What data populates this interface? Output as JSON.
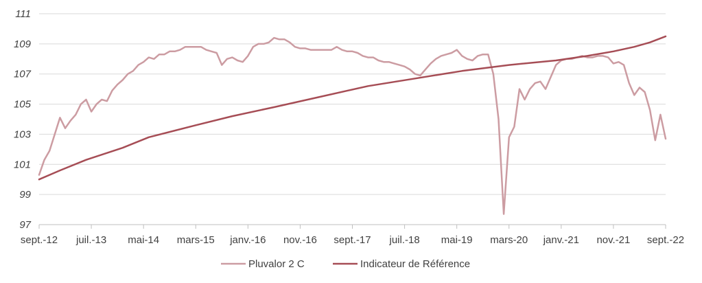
{
  "chart_data": {
    "type": "line",
    "title": "",
    "xlabel": "",
    "ylabel": "",
    "ylim": [
      97,
      111
    ],
    "y_ticks": [
      97,
      99,
      101,
      103,
      105,
      107,
      109,
      111
    ],
    "x_ticks": [
      {
        "x": "2012-09",
        "label": "sept.-12"
      },
      {
        "x": "2013-07",
        "label": "juil.-13"
      },
      {
        "x": "2014-05",
        "label": "mai-14"
      },
      {
        "x": "2015-03",
        "label": "mars-15"
      },
      {
        "x": "2016-01",
        "label": "janv.-16"
      },
      {
        "x": "2016-11",
        "label": "nov.-16"
      },
      {
        "x": "2017-09",
        "label": "sept.-17"
      },
      {
        "x": "2018-07",
        "label": "juil.-18"
      },
      {
        "x": "2019-05",
        "label": "mai-19"
      },
      {
        "x": "2020-03",
        "label": "mars-20"
      },
      {
        "x": "2021-01",
        "label": "janv.-21"
      },
      {
        "x": "2021-11",
        "label": "nov.-21"
      },
      {
        "x": "2022-09",
        "label": "sept.-22"
      }
    ],
    "xlim": [
      "2012-09",
      "2022-09"
    ],
    "grid": "horizontal",
    "legend_position": "bottom",
    "series": [
      {
        "name": "Pluvalor 2 C",
        "color": "#cc9ca2",
        "points": [
          [
            "2012-09",
            100.3
          ],
          [
            "2012-10",
            101.3
          ],
          [
            "2012-11",
            101.9
          ],
          [
            "2012-12",
            103.0
          ],
          [
            "2013-01",
            104.1
          ],
          [
            "2013-02",
            103.4
          ],
          [
            "2013-03",
            103.9
          ],
          [
            "2013-04",
            104.3
          ],
          [
            "2013-05",
            105.0
          ],
          [
            "2013-06",
            105.3
          ],
          [
            "2013-07",
            104.5
          ],
          [
            "2013-08",
            105.0
          ],
          [
            "2013-09",
            105.3
          ],
          [
            "2013-10",
            105.2
          ],
          [
            "2013-11",
            105.9
          ],
          [
            "2013-12",
            106.3
          ],
          [
            "2014-01",
            106.6
          ],
          [
            "2014-02",
            107.0
          ],
          [
            "2014-03",
            107.2
          ],
          [
            "2014-04",
            107.6
          ],
          [
            "2014-05",
            107.8
          ],
          [
            "2014-06",
            108.1
          ],
          [
            "2014-07",
            108.0
          ],
          [
            "2014-08",
            108.3
          ],
          [
            "2014-09",
            108.3
          ],
          [
            "2014-10",
            108.5
          ],
          [
            "2014-11",
            108.5
          ],
          [
            "2014-12",
            108.6
          ],
          [
            "2015-01",
            108.8
          ],
          [
            "2015-02",
            108.8
          ],
          [
            "2015-03",
            108.8
          ],
          [
            "2015-04",
            108.8
          ],
          [
            "2015-05",
            108.6
          ],
          [
            "2015-06",
            108.5
          ],
          [
            "2015-07",
            108.4
          ],
          [
            "2015-08",
            107.6
          ],
          [
            "2015-09",
            108.0
          ],
          [
            "2015-10",
            108.1
          ],
          [
            "2015-11",
            107.9
          ],
          [
            "2015-12",
            107.8
          ],
          [
            "2016-01",
            108.2
          ],
          [
            "2016-02",
            108.8
          ],
          [
            "2016-03",
            109.0
          ],
          [
            "2016-04",
            109.0
          ],
          [
            "2016-05",
            109.1
          ],
          [
            "2016-06",
            109.4
          ],
          [
            "2016-07",
            109.3
          ],
          [
            "2016-08",
            109.3
          ],
          [
            "2016-09",
            109.1
          ],
          [
            "2016-10",
            108.8
          ],
          [
            "2016-11",
            108.7
          ],
          [
            "2016-12",
            108.7
          ],
          [
            "2017-01",
            108.6
          ],
          [
            "2017-02",
            108.6
          ],
          [
            "2017-03",
            108.6
          ],
          [
            "2017-04",
            108.6
          ],
          [
            "2017-05",
            108.6
          ],
          [
            "2017-06",
            108.8
          ],
          [
            "2017-07",
            108.6
          ],
          [
            "2017-08",
            108.5
          ],
          [
            "2017-09",
            108.5
          ],
          [
            "2017-10",
            108.4
          ],
          [
            "2017-11",
            108.2
          ],
          [
            "2017-12",
            108.1
          ],
          [
            "2018-01",
            108.1
          ],
          [
            "2018-02",
            107.9
          ],
          [
            "2018-03",
            107.8
          ],
          [
            "2018-04",
            107.8
          ],
          [
            "2018-05",
            107.7
          ],
          [
            "2018-06",
            107.6
          ],
          [
            "2018-07",
            107.5
          ],
          [
            "2018-08",
            107.3
          ],
          [
            "2018-09",
            107.0
          ],
          [
            "2018-10",
            106.9
          ],
          [
            "2018-11",
            107.3
          ],
          [
            "2018-12",
            107.7
          ],
          [
            "2019-01",
            108.0
          ],
          [
            "2019-02",
            108.2
          ],
          [
            "2019-03",
            108.3
          ],
          [
            "2019-04",
            108.4
          ],
          [
            "2019-05",
            108.6
          ],
          [
            "2019-06",
            108.2
          ],
          [
            "2019-07",
            108.0
          ],
          [
            "2019-08",
            107.9
          ],
          [
            "2019-09",
            108.2
          ],
          [
            "2019-10",
            108.3
          ],
          [
            "2019-11",
            108.3
          ],
          [
            "2019-12",
            107.0
          ],
          [
            "2020-01",
            104.0
          ],
          [
            "2020-02",
            97.7
          ],
          [
            "2020-03",
            102.8
          ],
          [
            "2020-04",
            103.5
          ],
          [
            "2020-05",
            106.0
          ],
          [
            "2020-06",
            105.3
          ],
          [
            "2020-07",
            106.0
          ],
          [
            "2020-08",
            106.4
          ],
          [
            "2020-09",
            106.5
          ],
          [
            "2020-10",
            106.0
          ],
          [
            "2020-11",
            106.8
          ],
          [
            "2020-12",
            107.6
          ],
          [
            "2021-01",
            107.9
          ],
          [
            "2021-02",
            108.0
          ],
          [
            "2021-03",
            108.0
          ],
          [
            "2021-04",
            108.1
          ],
          [
            "2021-05",
            108.2
          ],
          [
            "2021-06",
            108.1
          ],
          [
            "2021-07",
            108.1
          ],
          [
            "2021-08",
            108.2
          ],
          [
            "2021-09",
            108.2
          ],
          [
            "2021-10",
            108.1
          ],
          [
            "2021-11",
            107.7
          ],
          [
            "2021-12",
            107.8
          ],
          [
            "2022-01",
            107.6
          ],
          [
            "2022-02",
            106.4
          ],
          [
            "2022-03",
            105.6
          ],
          [
            "2022-04",
            106.1
          ],
          [
            "2022-05",
            105.8
          ],
          [
            "2022-06",
            104.6
          ],
          [
            "2022-07",
            102.6
          ],
          [
            "2022-08",
            104.3
          ],
          [
            "2022-09",
            102.7
          ]
        ]
      },
      {
        "name": "Indicateur de Référence",
        "color": "#a64d55",
        "points": [
          [
            "2012-09",
            100.0
          ],
          [
            "2013-01",
            100.6
          ],
          [
            "2013-06",
            101.3
          ],
          [
            "2014-01",
            102.1
          ],
          [
            "2014-06",
            102.8
          ],
          [
            "2015-03",
            103.6
          ],
          [
            "2015-10",
            104.2
          ],
          [
            "2016-06",
            104.8
          ],
          [
            "2017-03",
            105.5
          ],
          [
            "2017-12",
            106.2
          ],
          [
            "2018-09",
            106.7
          ],
          [
            "2019-06",
            107.2
          ],
          [
            "2020-03",
            107.6
          ],
          [
            "2020-12",
            107.9
          ],
          [
            "2021-06",
            108.2
          ],
          [
            "2021-11",
            108.5
          ],
          [
            "2022-03",
            108.8
          ],
          [
            "2022-06",
            109.1
          ],
          [
            "2022-09",
            109.5
          ]
        ]
      }
    ]
  }
}
